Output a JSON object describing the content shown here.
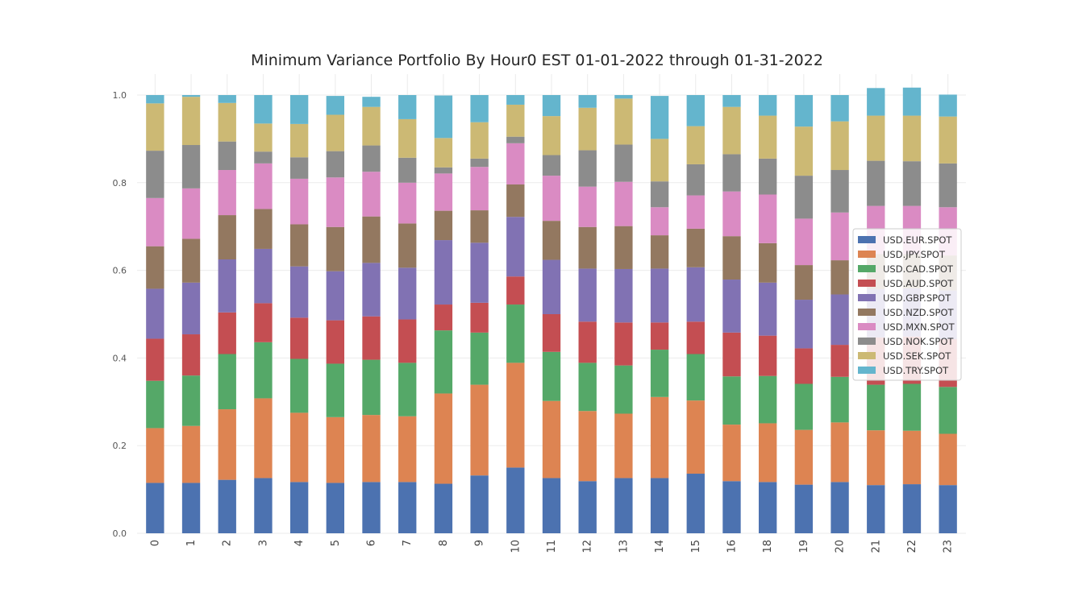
{
  "chart_data": {
    "type": "bar",
    "stacked": true,
    "title": "Minimum Variance Portfolio By Hour0 EST 01-01-2022 through 01-31-2022",
    "xlabel": "",
    "ylabel": "",
    "categories": [
      "0",
      "1",
      "2",
      "3",
      "4",
      "5",
      "6",
      "7",
      "8",
      "9",
      "10",
      "11",
      "12",
      "13",
      "14",
      "15",
      "16",
      "18",
      "19",
      "20",
      "21",
      "22",
      "23"
    ],
    "ylim": [
      0,
      1.0
    ],
    "yticks": [
      "0.0",
      "0.2",
      "0.4",
      "0.6",
      "0.8",
      "1.0"
    ],
    "grid": true,
    "legend_position": "center-right",
    "series": [
      {
        "name": "USD.EUR.SPOT",
        "color": "#4c72b0",
        "values": [
          0.115,
          0.115,
          0.122,
          0.126,
          0.117,
          0.115,
          0.117,
          0.117,
          0.113,
          0.132,
          0.15,
          0.126,
          0.119,
          0.126,
          0.126,
          0.136,
          0.119,
          0.117,
          0.111,
          0.117,
          0.11,
          0.112,
          0.11
        ]
      },
      {
        "name": "USD.JPY.SPOT",
        "color": "#dd8452",
        "values": [
          0.125,
          0.13,
          0.161,
          0.182,
          0.158,
          0.15,
          0.153,
          0.15,
          0.206,
          0.207,
          0.239,
          0.176,
          0.16,
          0.147,
          0.185,
          0.167,
          0.129,
          0.134,
          0.125,
          0.136,
          0.125,
          0.122,
          0.117
        ]
      },
      {
        "name": "USD.CAD.SPOT",
        "color": "#55a868",
        "values": [
          0.108,
          0.115,
          0.126,
          0.128,
          0.123,
          0.122,
          0.126,
          0.122,
          0.144,
          0.119,
          0.133,
          0.112,
          0.11,
          0.11,
          0.108,
          0.106,
          0.11,
          0.108,
          0.105,
          0.104,
          0.104,
          0.107,
          0.107
        ]
      },
      {
        "name": "USD.AUD.SPOT",
        "color": "#c44e52",
        "values": [
          0.096,
          0.094,
          0.095,
          0.089,
          0.094,
          0.099,
          0.099,
          0.099,
          0.059,
          0.068,
          0.064,
          0.086,
          0.094,
          0.098,
          0.062,
          0.074,
          0.1,
          0.092,
          0.081,
          0.073,
          0.108,
          0.108,
          0.109
        ]
      },
      {
        "name": "USD.GBP.SPOT",
        "color": "#8172b3",
        "values": [
          0.114,
          0.118,
          0.121,
          0.124,
          0.117,
          0.112,
          0.122,
          0.118,
          0.147,
          0.137,
          0.136,
          0.124,
          0.121,
          0.122,
          0.123,
          0.124,
          0.121,
          0.121,
          0.111,
          0.115,
          0.11,
          0.11,
          0.111
        ]
      },
      {
        "name": "USD.NZD.SPOT",
        "color": "#937860",
        "values": [
          0.097,
          0.1,
          0.101,
          0.091,
          0.096,
          0.101,
          0.106,
          0.101,
          0.067,
          0.074,
          0.074,
          0.089,
          0.095,
          0.098,
          0.076,
          0.088,
          0.099,
          0.09,
          0.079,
          0.078,
          0.08,
          0.078,
          0.08
        ]
      },
      {
        "name": "USD.MXN.SPOT",
        "color": "#da8bc3",
        "values": [
          0.11,
          0.115,
          0.103,
          0.104,
          0.104,
          0.113,
          0.102,
          0.093,
          0.085,
          0.099,
          0.094,
          0.103,
          0.092,
          0.101,
          0.064,
          0.076,
          0.102,
          0.111,
          0.106,
          0.109,
          0.11,
          0.11,
          0.11
        ]
      },
      {
        "name": "USD.NOK.SPOT",
        "color": "#8c8c8c",
        "values": [
          0.108,
          0.099,
          0.065,
          0.027,
          0.049,
          0.06,
          0.06,
          0.057,
          0.014,
          0.019,
          0.015,
          0.047,
          0.083,
          0.085,
          0.059,
          0.071,
          0.085,
          0.082,
          0.098,
          0.097,
          0.103,
          0.102,
          0.1
        ]
      },
      {
        "name": "USD.SEK.SPOT",
        "color": "#ccb974",
        "values": [
          0.108,
          0.11,
          0.088,
          0.064,
          0.076,
          0.083,
          0.088,
          0.088,
          0.067,
          0.083,
          0.073,
          0.089,
          0.097,
          0.105,
          0.097,
          0.087,
          0.108,
          0.098,
          0.112,
          0.111,
          0.103,
          0.104,
          0.107
        ]
      },
      {
        "name": "USD.TRY.SPOT",
        "color": "#64b5cd",
        "values": [
          0.019,
          0.004,
          0.018,
          0.065,
          0.066,
          0.043,
          0.023,
          0.055,
          0.097,
          0.062,
          0.022,
          0.048,
          0.029,
          0.008,
          0.098,
          0.071,
          0.027,
          0.047,
          0.072,
          0.06,
          0.063,
          0.064,
          0.05
        ]
      }
    ]
  }
}
